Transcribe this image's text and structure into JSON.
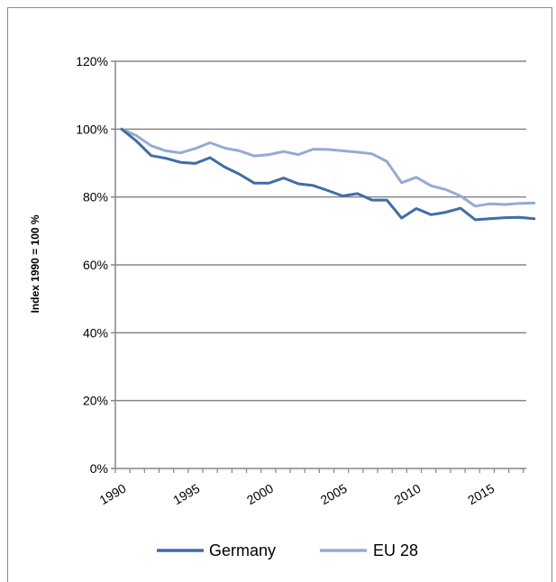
{
  "chart_data": {
    "type": "line",
    "title": "",
    "xlabel": "",
    "ylabel": "Index 1990 = 100 %",
    "ylim": [
      0,
      120
    ],
    "xlim": [
      1990,
      2018
    ],
    "yticks": [
      "0%",
      "20%",
      "40%",
      "60%",
      "80%",
      "100%",
      "120%"
    ],
    "ytick_values": [
      0,
      20,
      40,
      60,
      80,
      100,
      120
    ],
    "xticks": [
      "1990",
      "1995",
      "2000",
      "2005",
      "2010",
      "2015"
    ],
    "xtick_values": [
      1990,
      1995,
      2000,
      2005,
      2010,
      2015
    ],
    "grid": "horizontal",
    "legend_position": "bottom",
    "x": [
      1990,
      1991,
      1992,
      1993,
      1994,
      1995,
      1996,
      1997,
      1998,
      1999,
      2000,
      2001,
      2002,
      2003,
      2004,
      2005,
      2006,
      2007,
      2008,
      2009,
      2010,
      2011,
      2012,
      2013,
      2014,
      2015,
      2016,
      2017,
      2018
    ],
    "series": [
      {
        "name": "Germany",
        "color": "#3f6da6",
        "values": [
          100,
          96.5,
          92.2,
          91.4,
          90.2,
          89.9,
          91.6,
          88.8,
          86.7,
          84.1,
          84.1,
          85.6,
          83.9,
          83.4,
          81.9,
          80.3,
          81.0,
          79.1,
          79.1,
          73.8,
          76.6,
          74.8,
          75.5,
          76.7,
          73.3,
          73.6,
          73.9,
          74.0,
          73.6
        ]
      },
      {
        "name": "EU 28",
        "color": "#94acd4",
        "values": [
          100,
          98.1,
          95.1,
          93.6,
          93.0,
          94.3,
          96.0,
          94.4,
          93.6,
          92.1,
          92.5,
          93.4,
          92.5,
          94.1,
          94.0,
          93.6,
          93.2,
          92.7,
          90.5,
          84.2,
          85.8,
          83.3,
          82.2,
          80.3,
          77.3,
          78.0,
          77.8,
          78.1,
          78.2
        ]
      }
    ]
  }
}
